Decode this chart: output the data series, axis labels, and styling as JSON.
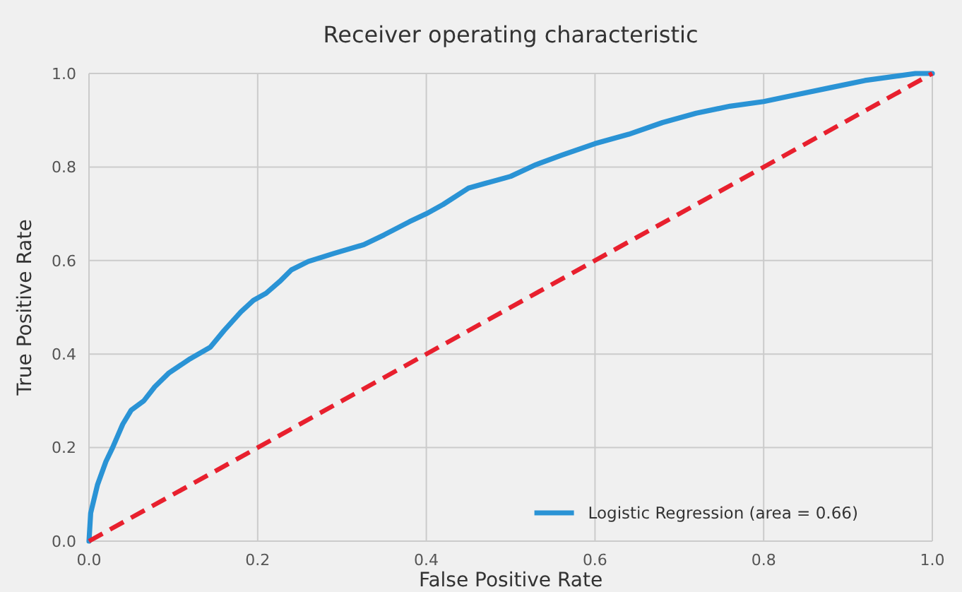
{
  "chart_data": {
    "type": "line",
    "title": "Receiver operating characteristic",
    "xlabel": "False Positive Rate",
    "ylabel": "True Positive Rate",
    "xlim": [
      0,
      1
    ],
    "ylim": [
      0,
      1
    ],
    "xticks": [
      {
        "value": 0,
        "label": "0.0"
      },
      0.2,
      0.4,
      0.6,
      0.8,
      {
        "value": 1,
        "label": "1.0"
      }
    ],
    "yticks": [
      {
        "value": 0,
        "label": "0.0"
      },
      0.2,
      0.4,
      0.6,
      0.8,
      {
        "value": 1,
        "label": "1.0"
      }
    ],
    "grid": true,
    "legend": "bottom right",
    "series": [
      {
        "name": "Logistic Regression (area = 0.66)",
        "color": "#2a93d5",
        "line_style": "solid",
        "x": [
          0,
          0.002,
          0.01,
          0.02,
          0.028,
          0.04,
          0.05,
          0.065,
          0.078,
          0.095,
          0.12,
          0.144,
          0.16,
          0.18,
          0.195,
          0.21,
          0.226,
          0.24,
          0.26,
          0.29,
          0.326,
          0.35,
          0.38,
          0.4,
          0.42,
          0.45,
          0.47,
          0.5,
          0.53,
          0.56,
          0.6,
          0.64,
          0.68,
          0.72,
          0.76,
          0.8,
          0.84,
          0.88,
          0.92,
          0.96,
          0.98,
          1
        ],
        "values": [
          0,
          0.06,
          0.12,
          0.17,
          0.2,
          0.25,
          0.28,
          0.3,
          0.33,
          0.36,
          0.39,
          0.415,
          0.45,
          0.49,
          0.515,
          0.53,
          0.555,
          0.58,
          0.598,
          0.615,
          0.634,
          0.655,
          0.683,
          0.7,
          0.72,
          0.755,
          0.765,
          0.78,
          0.805,
          0.825,
          0.85,
          0.87,
          0.895,
          0.915,
          0.93,
          0.94,
          0.955,
          0.97,
          0.985,
          0.995,
          1,
          1
        ]
      },
      {
        "type": "line",
        "color": "#e8202e",
        "line_style": "dashed",
        "x": [
          0,
          1
        ],
        "values": [
          0,
          1
        ]
      }
    ]
  }
}
